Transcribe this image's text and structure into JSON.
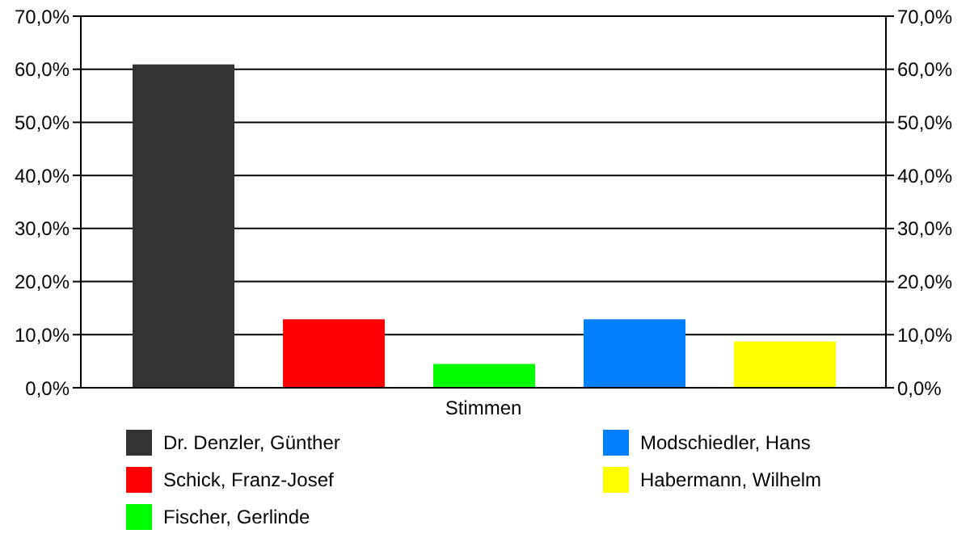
{
  "chart_data": {
    "type": "bar",
    "categories": [
      "Stimmen"
    ],
    "series": [
      {
        "name": "Dr. Denzler, Günther",
        "color": "#333333",
        "values": [
          60.9
        ]
      },
      {
        "name": "Schick, Franz-Josef",
        "color": "#ff0000",
        "values": [
          12.9
        ]
      },
      {
        "name": "Fischer, Gerlinde",
        "color": "#00ff00",
        "values": [
          4.5
        ]
      },
      {
        "name": "Modschiedler, Hans",
        "color": "#0080ff",
        "values": [
          12.9
        ]
      },
      {
        "name": "Habermann, Wilhelm",
        "color": "#ffff00",
        "values": [
          8.7
        ]
      }
    ],
    "ylim": [
      0,
      70
    ],
    "yticks": [
      {
        "value": 0,
        "label": "0,0%"
      },
      {
        "value": 10,
        "label": "10,0%"
      },
      {
        "value": 20,
        "label": "20,0%"
      },
      {
        "value": 30,
        "label": "30,0%"
      },
      {
        "value": 40,
        "label": "40,0%"
      },
      {
        "value": 50,
        "label": "50,0%"
      },
      {
        "value": 60,
        "label": "60,0%"
      },
      {
        "value": 70,
        "label": "70,0%"
      }
    ],
    "grid": "y",
    "legend": "bottom"
  }
}
